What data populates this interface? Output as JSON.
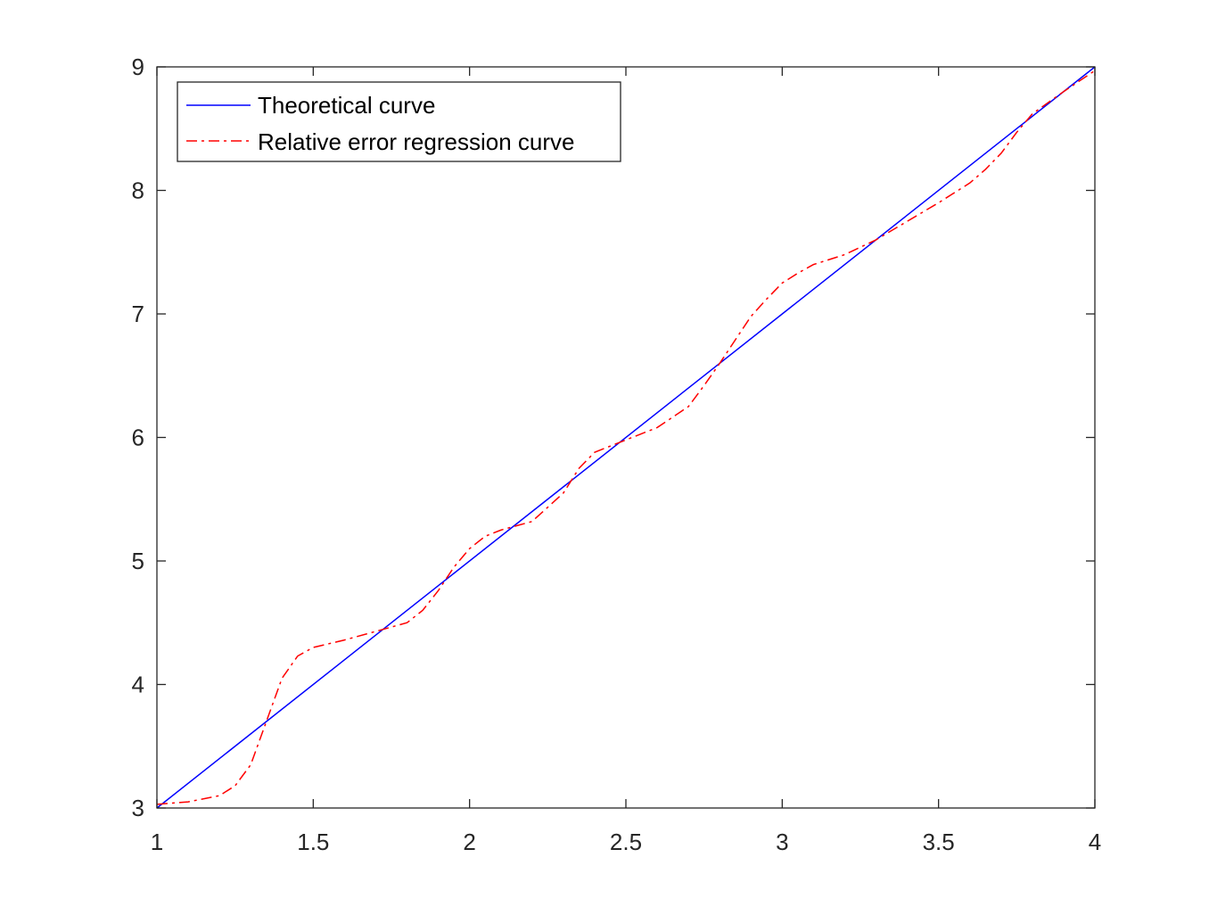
{
  "chart_data": {
    "type": "line",
    "title": "",
    "xlabel": "",
    "ylabel": "",
    "xlim": [
      1,
      4
    ],
    "ylim": [
      3,
      9
    ],
    "xticks": [
      "1",
      "1.5",
      "2",
      "2.5",
      "3",
      "3.5",
      "4"
    ],
    "yticks": [
      "3",
      "4",
      "5",
      "6",
      "7",
      "8",
      "9"
    ],
    "grid": false,
    "legend_position": "top-left",
    "series": [
      {
        "name": "Theoretical curve",
        "color": "#0000ff",
        "style": "solid",
        "x": [
          1,
          4
        ],
        "y": [
          3,
          9
        ]
      },
      {
        "name": "Relative error regression curve",
        "color": "#ff0000",
        "style": "dashdot",
        "x": [
          1.0,
          1.1,
          1.2,
          1.25,
          1.3,
          1.35,
          1.4,
          1.45,
          1.5,
          1.6,
          1.7,
          1.8,
          1.85,
          1.9,
          1.95,
          2.0,
          2.05,
          2.1,
          2.2,
          2.3,
          2.35,
          2.4,
          2.5,
          2.6,
          2.7,
          2.75,
          2.8,
          2.85,
          2.9,
          2.95,
          3.0,
          3.05,
          3.1,
          3.2,
          3.3,
          3.4,
          3.5,
          3.6,
          3.65,
          3.7,
          3.75,
          3.8,
          3.9,
          4.0
        ],
        "y": [
          3.03,
          3.05,
          3.1,
          3.18,
          3.35,
          3.7,
          4.05,
          4.23,
          4.3,
          4.36,
          4.43,
          4.5,
          4.6,
          4.76,
          4.95,
          5.1,
          5.2,
          5.25,
          5.32,
          5.55,
          5.75,
          5.88,
          5.98,
          6.08,
          6.25,
          6.42,
          6.6,
          6.79,
          6.98,
          7.12,
          7.25,
          7.33,
          7.4,
          7.48,
          7.6,
          7.75,
          7.9,
          8.06,
          8.17,
          8.3,
          8.47,
          8.62,
          8.8,
          8.97
        ]
      }
    ]
  }
}
